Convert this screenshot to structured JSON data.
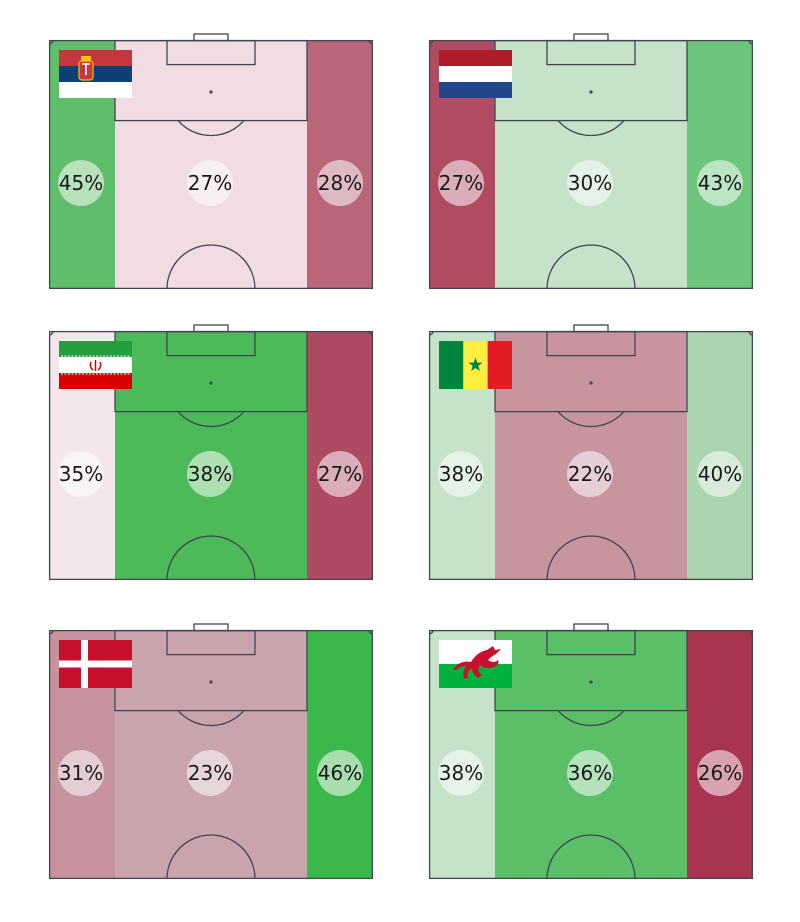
{
  "chart_data": [
    {
      "type": "heatmap",
      "country": "serbia",
      "categories": [
        "left",
        "center",
        "right"
      ],
      "values": [
        45,
        27,
        28
      ],
      "labels": [
        "45%",
        "27%",
        "28%"
      ],
      "colors": [
        "#5fbe6a",
        "#f0dce2",
        "#b96679"
      ]
    },
    {
      "type": "heatmap",
      "country": "netherlands",
      "categories": [
        "left",
        "center",
        "right"
      ],
      "values": [
        27,
        30,
        43
      ],
      "labels": [
        "27%",
        "30%",
        "43%"
      ],
      "colors": [
        "#b04b62",
        "#c6e2c9",
        "#6cc57a"
      ]
    },
    {
      "type": "heatmap",
      "country": "iran",
      "categories": [
        "left",
        "center",
        "right"
      ],
      "values": [
        35,
        38,
        27
      ],
      "labels": [
        "35%",
        "38%",
        "27%"
      ],
      "colors": [
        "#f4e6ea",
        "#4cba58",
        "#ae4a62"
      ]
    },
    {
      "type": "heatmap",
      "country": "senegal",
      "categories": [
        "left",
        "center",
        "right"
      ],
      "values": [
        38,
        22,
        40
      ],
      "labels": [
        "38%",
        "22%",
        "40%"
      ],
      "colors": [
        "#c6e2c9",
        "#c8959f",
        "#abd4b0"
      ]
    },
    {
      "type": "heatmap",
      "country": "denmark",
      "categories": [
        "left",
        "center",
        "right"
      ],
      "values": [
        31,
        23,
        46
      ],
      "labels": [
        "31%",
        "23%",
        "46%"
      ],
      "colors": [
        "#c6929e",
        "#caa4ac",
        "#3ab94a"
      ]
    },
    {
      "type": "heatmap",
      "country": "wales",
      "categories": [
        "left",
        "center",
        "right"
      ],
      "values": [
        38,
        36,
        26
      ],
      "labels": [
        "38%",
        "36%",
        "26%"
      ],
      "colors": [
        "#c6e2c9",
        "#5abf66",
        "#a8344f"
      ]
    }
  ],
  "theme": {
    "line": "#3f4650",
    "bubble": "#ffffff"
  }
}
